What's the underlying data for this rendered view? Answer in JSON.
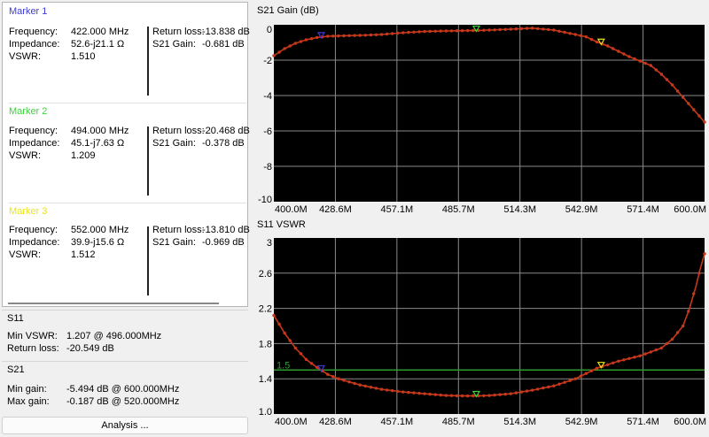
{
  "markers": [
    {
      "title": "Marker 1",
      "color": "#3b3bd6",
      "frequency_label": "Frequency:",
      "frequency": "422.000 MHz",
      "impedance_label": "Impedance:",
      "impedance": "52.6-j21.1 Ω",
      "vswr_label": "VSWR:",
      "vswr": "1.510",
      "rl_label": "Return loss:",
      "return_loss": "-13.838 dB",
      "gain_label": "S21 Gain:",
      "s21_gain": "-0.681 dB"
    },
    {
      "title": "Marker 2",
      "color": "#3ad43a",
      "frequency_label": "Frequency:",
      "frequency": "494.000 MHz",
      "impedance_label": "Impedance:",
      "impedance": "45.1-j7.63 Ω",
      "vswr_label": "VSWR:",
      "vswr": "1.209",
      "rl_label": "Return loss:",
      "return_loss": "-20.468 dB",
      "gain_label": "S21 Gain:",
      "s21_gain": "-0.378 dB"
    },
    {
      "title": "Marker 3",
      "color": "#e9e61a",
      "frequency_label": "Frequency:",
      "frequency": "552.000 MHz",
      "impedance_label": "Impedance:",
      "impedance": "39.9-j15.6 Ω",
      "vswr_label": "VSWR:",
      "vswr": "1.512",
      "rl_label": "Return loss:",
      "return_loss": "-13.810 dB",
      "gain_label": "S21 Gain:",
      "s21_gain": "-0.969 dB"
    }
  ],
  "s11": {
    "title": "S11",
    "min_vswr_label": "Min VSWR:",
    "min_vswr": "1.207 @ 496.000MHz",
    "rl_label": "Return loss:",
    "return_loss": "-20.549 dB"
  },
  "s21": {
    "title": "S21",
    "min_gain_label": "Min gain:",
    "min_gain": "-5.494 dB @ 600.000MHz",
    "max_gain_label": "Max gain:",
    "max_gain": "-0.187 dB @ 520.000MHz"
  },
  "analysis_button": "Analysis ...",
  "colors": {
    "trace": "#c8381a",
    "grid": "#8a8a8a",
    "plot_bg": "#000000",
    "ref_line": "#2e9a2e"
  },
  "chart_data": [
    {
      "type": "line",
      "title": "S21 Gain (dB)",
      "ylim": [
        -10,
        0
      ],
      "yticks": [
        "0",
        "-2",
        "-4",
        "-6",
        "-8",
        "-10"
      ],
      "xticks": [
        "400.0M",
        "428.6M",
        "457.1M",
        "485.7M",
        "514.3M",
        "542.9M",
        "571.4M",
        "600.0M"
      ],
      "xlim": [
        400,
        600
      ],
      "x": [
        400,
        405,
        410,
        415,
        420,
        425,
        430,
        440,
        450,
        460,
        470,
        480,
        490,
        495,
        500,
        510,
        520,
        530,
        540,
        545,
        550,
        555,
        560,
        565,
        570,
        575,
        580,
        585,
        590,
        595,
        600
      ],
      "y": [
        -1.75,
        -1.35,
        -1.05,
        -0.85,
        -0.72,
        -0.65,
        -0.63,
        -0.6,
        -0.55,
        -0.45,
        -0.38,
        -0.35,
        -0.33,
        -0.32,
        -0.3,
        -0.25,
        -0.19,
        -0.3,
        -0.55,
        -0.68,
        -0.97,
        -1.2,
        -1.5,
        -1.8,
        -2.05,
        -2.3,
        -2.8,
        -3.4,
        -4.1,
        -4.8,
        -5.5
      ],
      "markers": [
        {
          "x": 422,
          "color": "#3b3bd6"
        },
        {
          "x": 494,
          "color": "#3ad43a"
        },
        {
          "x": 552,
          "color": "#e9e61a"
        }
      ]
    },
    {
      "type": "line",
      "title": "S11 VSWR",
      "ylim": [
        1.0,
        3.0
      ],
      "yticks": [
        "3",
        "2.6",
        "2.2",
        "1.8",
        "1.4",
        "1.0"
      ],
      "xticks": [
        "400.0M",
        "428.6M",
        "457.1M",
        "485.7M",
        "514.3M",
        "542.9M",
        "571.4M",
        "600.0M"
      ],
      "xlim": [
        400,
        600
      ],
      "reference_line": {
        "value": 1.5,
        "label": "1.5"
      },
      "x": [
        400,
        405,
        410,
        415,
        420,
        425,
        430,
        440,
        450,
        460,
        470,
        480,
        490,
        496,
        500,
        510,
        520,
        530,
        540,
        550,
        560,
        570,
        580,
        585,
        590,
        593,
        596,
        598,
        600
      ],
      "y": [
        2.12,
        1.92,
        1.75,
        1.62,
        1.53,
        1.45,
        1.4,
        1.33,
        1.28,
        1.25,
        1.23,
        1.21,
        1.205,
        1.207,
        1.21,
        1.23,
        1.27,
        1.32,
        1.4,
        1.52,
        1.6,
        1.66,
        1.75,
        1.85,
        2.0,
        2.2,
        2.45,
        2.65,
        2.82
      ],
      "markers": [
        {
          "x": 422,
          "color": "#3b3bd6"
        },
        {
          "x": 494,
          "color": "#3ad43a"
        },
        {
          "x": 552,
          "color": "#e9e61a"
        }
      ]
    }
  ]
}
